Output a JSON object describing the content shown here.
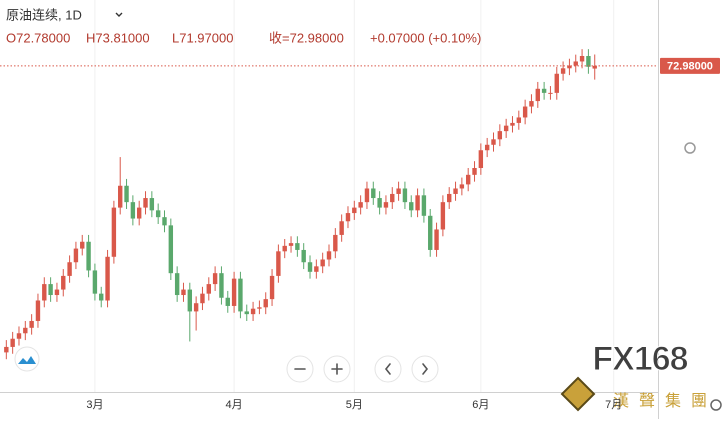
{
  "chart_data": {
    "type": "candlestick",
    "title": "原油连续, 1D",
    "ohlc_text": [
      "O72.78000",
      "H73.81000",
      "L71.97000",
      "收=72.98000",
      "+0.07000 (+0.10%)"
    ],
    "last_price": {
      "value": 72.98,
      "label": "72.98000"
    },
    "up_color": "#d9584a",
    "down_color": "#5aa86c",
    "xlim": [
      -1,
      103
    ],
    "ylim": [
      49.1,
      77.8
    ],
    "xticks": [
      {
        "value": 14,
        "label": "3月"
      },
      {
        "value": 36,
        "label": "4月"
      },
      {
        "value": 55,
        "label": "5月"
      },
      {
        "value": 75,
        "label": "6月"
      },
      {
        "value": 96,
        "label": "7月"
      }
    ],
    "open": [
      52.0,
      52.4,
      53.0,
      53.4,
      53.8,
      54.3,
      55.8,
      57.0,
      56.2,
      56.6,
      57.6,
      58.6,
      59.6,
      60.1,
      58.0,
      56.3,
      55.8,
      59.0,
      62.6,
      64.2,
      63.0,
      61.8,
      62.6,
      63.3,
      62.4,
      61.9,
      61.3,
      57.8,
      56.2,
      56.6,
      55.0,
      55.6,
      56.3,
      57.0,
      57.8,
      56.0,
      55.4,
      57.4,
      55.0,
      54.8,
      55.2,
      55.3,
      55.9,
      57.6,
      59.4,
      59.8,
      60.0,
      59.5,
      58.6,
      57.9,
      58.3,
      58.8,
      59.4,
      60.6,
      61.6,
      62.2,
      62.6,
      63.0,
      64.0,
      63.3,
      62.6,
      63.0,
      63.6,
      64.0,
      63.0,
      62.4,
      63.5,
      62.0,
      59.5,
      61.0,
      63.0,
      63.6,
      64.0,
      64.3,
      65.0,
      65.5,
      66.8,
      67.2,
      67.6,
      68.2,
      68.6,
      68.8,
      69.2,
      70.0,
      70.4,
      71.3,
      71.0,
      71.0,
      72.4,
      72.8,
      73.0,
      73.3,
      73.7,
      72.78
    ],
    "high": [
      52.9,
      53.5,
      53.9,
      54.3,
      54.8,
      56.3,
      57.5,
      57.5,
      57.1,
      58.1,
      59.1,
      60.1,
      60.6,
      60.6,
      58.5,
      56.8,
      59.5,
      63.1,
      66.3,
      64.7,
      63.5,
      63.1,
      63.8,
      63.8,
      62.9,
      62.4,
      61.8,
      58.3,
      57.1,
      57.1,
      56.1,
      56.8,
      57.5,
      58.3,
      58.3,
      56.5,
      57.9,
      57.9,
      55.5,
      55.7,
      55.8,
      56.4,
      58.1,
      59.9,
      60.3,
      60.5,
      60.5,
      60.0,
      59.1,
      58.8,
      59.3,
      59.9,
      61.1,
      62.1,
      62.7,
      63.1,
      63.5,
      64.5,
      64.5,
      63.8,
      63.5,
      64.1,
      64.5,
      64.5,
      63.5,
      64.0,
      64.0,
      62.5,
      61.5,
      63.5,
      64.1,
      64.5,
      64.8,
      65.5,
      66.0,
      67.3,
      67.7,
      68.1,
      68.7,
      69.1,
      69.3,
      69.7,
      70.5,
      70.9,
      71.8,
      71.8,
      71.5,
      72.9,
      73.3,
      73.5,
      73.8,
      74.2,
      74.2,
      73.81
    ],
    "low": [
      51.5,
      51.9,
      52.5,
      52.9,
      53.3,
      53.8,
      55.3,
      55.7,
      55.7,
      56.1,
      57.1,
      58.1,
      59.1,
      57.5,
      55.8,
      55.3,
      55.3,
      58.5,
      62.1,
      62.5,
      61.3,
      61.3,
      62.1,
      61.9,
      61.4,
      60.8,
      57.3,
      55.7,
      55.7,
      52.8,
      53.6,
      55.1,
      55.8,
      56.5,
      55.5,
      54.9,
      54.9,
      54.5,
      54.3,
      54.3,
      54.8,
      54.8,
      55.4,
      57.1,
      58.9,
      59.3,
      59.0,
      58.1,
      57.4,
      57.4,
      57.8,
      58.3,
      58.9,
      60.1,
      61.1,
      61.7,
      62.1,
      62.5,
      62.8,
      62.1,
      62.1,
      62.5,
      63.1,
      62.5,
      61.9,
      61.9,
      61.5,
      59.0,
      59.0,
      60.5,
      62.5,
      63.1,
      63.5,
      63.8,
      64.5,
      65.0,
      66.3,
      66.7,
      67.1,
      67.7,
      68.1,
      68.3,
      68.7,
      69.5,
      69.9,
      70.5,
      70.5,
      70.5,
      71.9,
      72.3,
      72.5,
      72.8,
      72.4,
      71.97
    ],
    "close": [
      52.4,
      53.0,
      53.4,
      53.8,
      54.3,
      55.8,
      57.0,
      56.2,
      56.6,
      57.6,
      58.6,
      59.6,
      60.1,
      58.0,
      56.3,
      55.8,
      59.0,
      62.6,
      64.2,
      63.0,
      61.8,
      62.6,
      63.3,
      62.4,
      61.9,
      61.3,
      57.8,
      56.2,
      56.6,
      55.0,
      55.6,
      56.3,
      57.0,
      57.8,
      56.0,
      55.4,
      57.4,
      55.0,
      54.8,
      55.2,
      55.3,
      55.9,
      57.6,
      59.4,
      59.8,
      60.0,
      59.5,
      58.6,
      57.9,
      58.3,
      58.8,
      59.4,
      60.6,
      61.6,
      62.2,
      62.6,
      63.0,
      64.0,
      63.3,
      62.6,
      63.0,
      63.6,
      64.0,
      63.0,
      62.4,
      63.5,
      62.0,
      59.5,
      61.0,
      63.0,
      63.6,
      64.0,
      64.3,
      65.0,
      65.5,
      66.8,
      67.2,
      67.6,
      68.2,
      68.6,
      68.8,
      69.2,
      70.0,
      70.4,
      71.3,
      71.0,
      71.0,
      72.4,
      72.8,
      73.0,
      73.3,
      73.7,
      72.91,
      72.98
    ],
    "logo_text": "FX168",
    "logo_subtitle": "漢聲集團"
  }
}
